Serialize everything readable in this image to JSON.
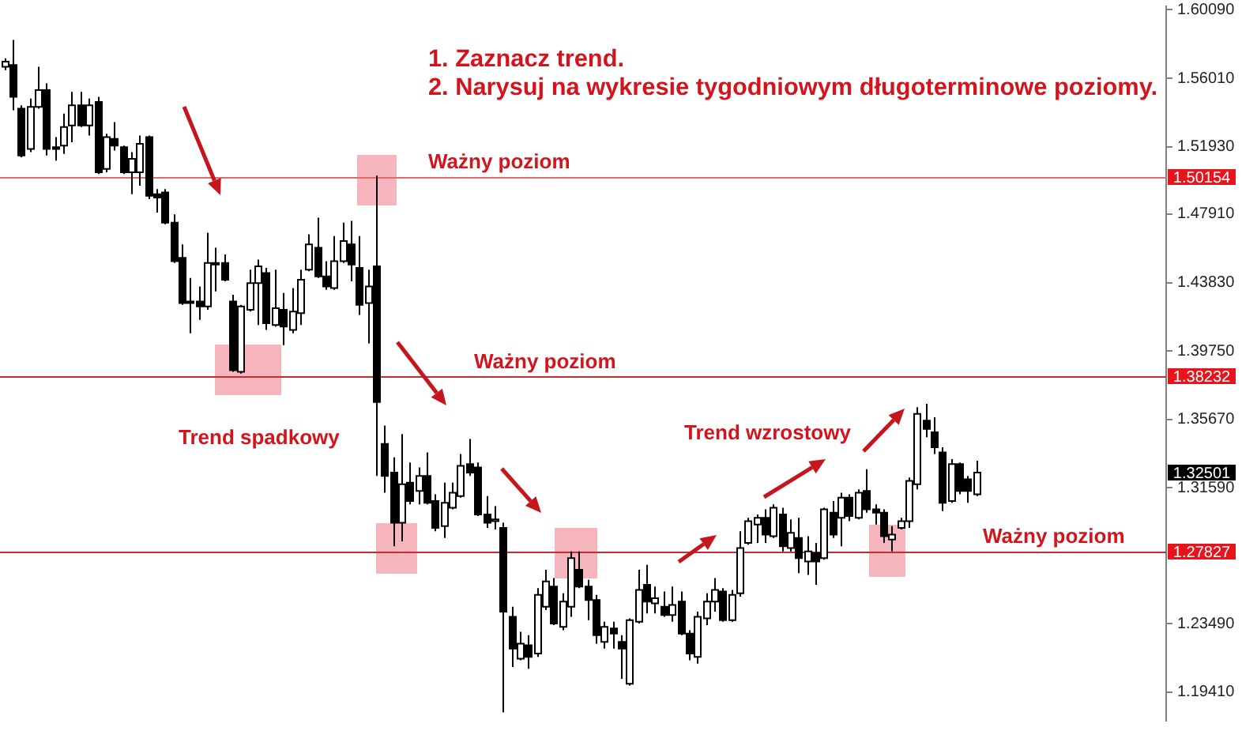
{
  "chart_data": {
    "type": "candlestick",
    "categories": [
      null,
      null,
      null,
      null,
      null,
      null,
      null,
      null,
      null,
      null,
      null,
      null,
      null,
      null,
      null,
      null,
      null,
      null,
      null,
      null,
      null,
      null,
      null,
      null,
      null,
      null,
      null,
      null,
      null,
      null,
      null,
      null,
      null,
      null,
      null,
      null,
      null,
      null,
      null,
      null,
      null,
      null,
      null,
      null,
      null,
      null,
      null,
      null,
      null,
      null,
      null,
      null,
      null,
      null,
      null,
      null,
      null,
      null,
      null,
      null,
      null,
      null,
      null,
      null,
      null,
      null,
      null,
      null,
      null,
      null,
      null,
      null,
      null,
      null,
      null,
      null,
      null,
      null,
      null,
      null,
      null,
      null,
      null,
      null,
      null,
      null,
      null,
      null,
      null,
      null,
      null,
      null,
      null,
      null,
      null,
      null,
      null,
      null,
      null,
      null,
      null,
      null,
      null,
      null,
      null,
      null,
      null,
      null,
      null,
      null,
      null,
      null,
      null,
      null,
      null,
      null,
      null,
      null,
      null,
      null,
      null,
      null,
      null,
      null,
      null,
      null,
      null,
      null,
      null,
      null,
      null,
      null,
      null,
      null,
      null,
      null,
      null,
      null
    ],
    "ohlc": [
      [
        1.567,
        1.572,
        1.565,
        1.57
      ],
      [
        1.568,
        1.583,
        1.541,
        1.549
      ],
      [
        1.542,
        1.544,
        1.513,
        1.514
      ],
      [
        1.518,
        1.548,
        1.516,
        1.543
      ],
      [
        1.543,
        1.567,
        1.542,
        1.553
      ],
      [
        1.553,
        1.557,
        1.514,
        1.518
      ],
      [
        1.519,
        1.525,
        1.511,
        1.518
      ],
      [
        1.52,
        1.539,
        1.515,
        1.531
      ],
      [
        1.532,
        1.552,
        1.522,
        1.544
      ],
      [
        1.544,
        1.552,
        1.531,
        1.532
      ],
      [
        1.532,
        1.548,
        1.526,
        1.544
      ],
      [
        1.546,
        1.549,
        1.503,
        1.504
      ],
      [
        1.506,
        1.527,
        1.504,
        1.525
      ],
      [
        1.524,
        1.534,
        1.517,
        1.52
      ],
      [
        1.519,
        1.52,
        1.503,
        1.504
      ],
      [
        1.504,
        1.516,
        1.491,
        1.512
      ],
      [
        1.504,
        1.526,
        1.496,
        1.521
      ],
      [
        1.525,
        1.526,
        1.488,
        1.49
      ],
      [
        1.491,
        1.494,
        1.48,
        1.489
      ],
      [
        1.492,
        1.494,
        1.473,
        1.474
      ],
      [
        1.474,
        1.479,
        1.45,
        1.451
      ],
      [
        1.453,
        1.461,
        1.425,
        1.426
      ],
      [
        1.427,
        1.441,
        1.408,
        1.426
      ],
      [
        1.427,
        1.436,
        1.416,
        1.424
      ],
      [
        1.424,
        1.468,
        1.422,
        1.45
      ],
      [
        1.45,
        1.459,
        1.433,
        1.449
      ],
      [
        1.45,
        1.455,
        1.439,
        1.44
      ],
      [
        1.427,
        1.431,
        1.385,
        1.386
      ],
      [
        1.385,
        1.425,
        1.384,
        1.424
      ],
      [
        1.422,
        1.446,
        1.421,
        1.438
      ],
      [
        1.438,
        1.452,
        1.413,
        1.448
      ],
      [
        1.444,
        1.447,
        1.41,
        1.414
      ],
      [
        1.413,
        1.446,
        1.412,
        1.423
      ],
      [
        1.422,
        1.432,
        1.401,
        1.412
      ],
      [
        1.41,
        1.435,
        1.408,
        1.421
      ],
      [
        1.42,
        1.446,
        1.413,
        1.44
      ],
      [
        1.446,
        1.467,
        1.445,
        1.461
      ],
      [
        1.459,
        1.477,
        1.441,
        1.442
      ],
      [
        1.442,
        1.451,
        1.434,
        1.436
      ],
      [
        1.435,
        1.466,
        1.434,
        1.451
      ],
      [
        1.451,
        1.474,
        1.45,
        1.463
      ],
      [
        1.461,
        1.475,
        1.439,
        1.449
      ],
      [
        1.447,
        1.466,
        1.419,
        1.425
      ],
      [
        1.426,
        1.446,
        1.402,
        1.436
      ],
      [
        1.448,
        1.502,
        1.323,
        1.367
      ],
      [
        1.342,
        1.353,
        1.313,
        1.323
      ],
      [
        1.325,
        1.334,
        1.281,
        1.295
      ],
      [
        1.295,
        1.348,
        1.284,
        1.318
      ],
      [
        1.319,
        1.331,
        1.306,
        1.308
      ],
      [
        1.314,
        1.328,
        1.306,
        1.323
      ],
      [
        1.323,
        1.337,
        1.306,
        1.307
      ],
      [
        1.308,
        1.312,
        1.29,
        1.292
      ],
      [
        1.293,
        1.319,
        1.286,
        1.307
      ],
      [
        1.304,
        1.319,
        1.303,
        1.313
      ],
      [
        1.311,
        1.336,
        1.31,
        1.329
      ],
      [
        1.33,
        1.345,
        1.323,
        1.325
      ],
      [
        1.328,
        1.331,
        1.299,
        1.3
      ],
      [
        1.3,
        1.311,
        1.292,
        1.295
      ],
      [
        1.296,
        1.305,
        1.291,
        1.297
      ],
      [
        1.292,
        1.295,
        1.182,
        1.242
      ],
      [
        1.239,
        1.245,
        1.209,
        1.22
      ],
      [
        1.214,
        1.23,
        1.213,
        1.223
      ],
      [
        1.222,
        1.228,
        1.208,
        1.215
      ],
      [
        1.217,
        1.256,
        1.215,
        1.252
      ],
      [
        1.245,
        1.267,
        1.243,
        1.26
      ],
      [
        1.257,
        1.262,
        1.234,
        1.235
      ],
      [
        1.233,
        1.253,
        1.231,
        1.248
      ],
      [
        1.245,
        1.278,
        1.239,
        1.274
      ],
      [
        1.267,
        1.278,
        1.256,
        1.257
      ],
      [
        1.257,
        1.261,
        1.237,
        1.249
      ],
      [
        1.249,
        1.252,
        1.223,
        1.228
      ],
      [
        1.224,
        1.236,
        1.22,
        1.233
      ],
      [
        1.232,
        1.236,
        1.22,
        1.229
      ],
      [
        1.224,
        1.228,
        1.202,
        1.22
      ],
      [
        1.199,
        1.238,
        1.198,
        1.237
      ],
      [
        1.236,
        1.267,
        1.235,
        1.255
      ],
      [
        1.258,
        1.27,
        1.241,
        1.248
      ],
      [
        1.247,
        1.257,
        1.241,
        1.25
      ],
      [
        1.245,
        1.254,
        1.239,
        1.24
      ],
      [
        1.24,
        1.257,
        1.236,
        1.246
      ],
      [
        1.248,
        1.254,
        1.228,
        1.229
      ],
      [
        1.229,
        1.231,
        1.213,
        1.217
      ],
      [
        1.215,
        1.242,
        1.211,
        1.239
      ],
      [
        1.238,
        1.253,
        1.234,
        1.248
      ],
      [
        1.248,
        1.262,
        1.242,
        1.255
      ],
      [
        1.254,
        1.256,
        1.236,
        1.237
      ],
      [
        1.237,
        1.255,
        1.236,
        1.252
      ],
      [
        1.253,
        1.29,
        1.251,
        1.28
      ],
      [
        1.283,
        1.298,
        1.282,
        1.296
      ],
      [
        1.294,
        1.3,
        1.283,
        1.298
      ],
      [
        1.298,
        1.303,
        1.283,
        1.288
      ],
      [
        1.287,
        1.306,
        1.286,
        1.304
      ],
      [
        1.3,
        1.304,
        1.278,
        1.281
      ],
      [
        1.28,
        1.297,
        1.278,
        1.289
      ],
      [
        1.286,
        1.298,
        1.265,
        1.274
      ],
      [
        1.272,
        1.287,
        1.264,
        1.278
      ],
      [
        1.277,
        1.283,
        1.258,
        1.272
      ],
      [
        1.274,
        1.304,
        1.273,
        1.303
      ],
      [
        1.301,
        1.308,
        1.286,
        1.288
      ],
      [
        1.298,
        1.313,
        1.281,
        1.31
      ],
      [
        1.31,
        1.312,
        1.296,
        1.299
      ],
      [
        1.298,
        1.315,
        1.297,
        1.313
      ],
      [
        1.314,
        1.327,
        1.301,
        1.303
      ],
      [
        1.303,
        1.306,
        1.294,
        1.301
      ],
      [
        1.301,
        1.303,
        1.283,
        1.287
      ],
      [
        1.285,
        1.293,
        1.278,
        1.288
      ],
      [
        1.292,
        1.298,
        1.291,
        1.296
      ],
      [
        1.296,
        1.322,
        1.292,
        1.32
      ],
      [
        1.318,
        1.364,
        1.315,
        1.36
      ],
      [
        1.356,
        1.366,
        1.346,
        1.351
      ],
      [
        1.349,
        1.358,
        1.336,
        1.34
      ],
      [
        1.337,
        1.34,
        1.302,
        1.307
      ],
      [
        1.308,
        1.333,
        1.307,
        1.33
      ],
      [
        1.33,
        1.331,
        1.312,
        1.314
      ],
      [
        1.321,
        1.323,
        1.307,
        1.314
      ],
      [
        1.312,
        1.332,
        1.311,
        1.325
      ],
      null,
      null,
      null,
      null,
      null,
      null,
      null,
      null,
      null,
      null,
      null,
      null,
      null,
      null,
      null,
      null,
      null,
      null,
      null,
      null,
      null,
      null
    ],
    "colors": [
      "#ffffff",
      "#000000",
      "#000000",
      "#ffffff",
      "#ffffff",
      "#000000",
      "#000000",
      "#ffffff",
      "#ffffff",
      "#000000",
      "#ffffff",
      "#000000",
      "#ffffff",
      "#000000",
      "#000000",
      "#ffffff",
      "#ffffff",
      "#000000",
      "#000000",
      "#000000",
      "#000000",
      "#000000",
      "#000000",
      "#000000",
      "#ffffff",
      "#000000",
      "#000000",
      "#000000",
      "#ffffff",
      "#ffffff",
      "#ffffff",
      "#000000",
      "#ffffff",
      "#000000",
      "#ffffff",
      "#ffffff",
      "#ffffff",
      "#000000",
      "#000000",
      "#ffffff",
      "#ffffff",
      "#000000",
      "#000000",
      "#ffffff",
      "#000000",
      "#000000",
      "#000000",
      "#ffffff",
      "#000000",
      "#ffffff",
      "#000000",
      "#000000",
      "#ffffff",
      "#ffffff",
      "#ffffff",
      "#000000",
      "#000000",
      "#000000",
      "#ffffff",
      "#000000",
      "#000000",
      "#ffffff",
      "#000000",
      "#ffffff",
      "#ffffff",
      "#000000",
      "#ffffff",
      "#ffffff",
      "#000000",
      "#000000",
      "#000000",
      "#ffffff",
      "#000000",
      "#000000",
      "#ffffff",
      "#ffffff",
      "#000000",
      "#ffffff",
      "#000000",
      "#ffffff",
      "#000000",
      "#000000",
      "#ffffff",
      "#ffffff",
      "#ffffff",
      "#000000",
      "#ffffff",
      "#ffffff",
      "#ffffff",
      "#ffffff",
      "#000000",
      "#ffffff",
      "#000000",
      "#ffffff",
      "#000000",
      "#ffffff",
      "#000000",
      "#ffffff",
      "#000000",
      "#ffffff",
      "#000000",
      "#ffffff",
      "#000000",
      "#000000",
      "#000000",
      "#ffffff",
      "#ffffff",
      "#ffffff",
      "#ffffff",
      "#000000",
      "#000000",
      "#000000",
      "#ffffff",
      "#000000",
      "#000000",
      "#ffffff",
      null,
      null,
      null,
      null,
      null,
      null,
      null,
      null,
      null,
      null,
      null,
      null,
      null,
      null,
      null,
      null,
      null,
      null,
      null,
      null,
      null,
      null
    ],
    "ylim": [
      1.177,
      1.603
    ],
    "yticks": [
      {
        "value": 1.6009,
        "label": "1.60090"
      },
      {
        "value": 1.5601,
        "label": "1.56010"
      },
      {
        "value": 1.5193,
        "label": "1.51930"
      },
      {
        "value": 1.4791,
        "label": "1.47910"
      },
      {
        "value": 1.4383,
        "label": "1.43830"
      },
      {
        "value": 1.3975,
        "label": "1.39750"
      },
      {
        "value": 1.3567,
        "label": "1.35670"
      },
      {
        "value": 1.3159,
        "label": "1.31590"
      },
      {
        "value": 1.2349,
        "label": "1.23490"
      },
      {
        "value": 1.1941,
        "label": "1.19410"
      }
    ],
    "tick_labels": "y",
    "ref_lines": [
      {
        "axis": "y",
        "value": 1.50154,
        "label": "Ważny poziom",
        "color": "#e26a6a"
      },
      {
        "axis": "y",
        "value": 1.38232,
        "label": "Ważny poziom",
        "color": "#c03030"
      },
      {
        "axis": "y",
        "value": 1.27827,
        "label": "Ważny poziom",
        "color": "#c03030"
      }
    ],
    "annotations": [
      "1. Zaznacz trend.",
      "2. Narysuj na wykresie tygodniowym długoterminowe poziomy.",
      "Trend spadkowy",
      "Trend wzrostowy",
      "1.32501",
      "1.50154",
      "1.38232",
      "1.27827"
    ]
  }
}
